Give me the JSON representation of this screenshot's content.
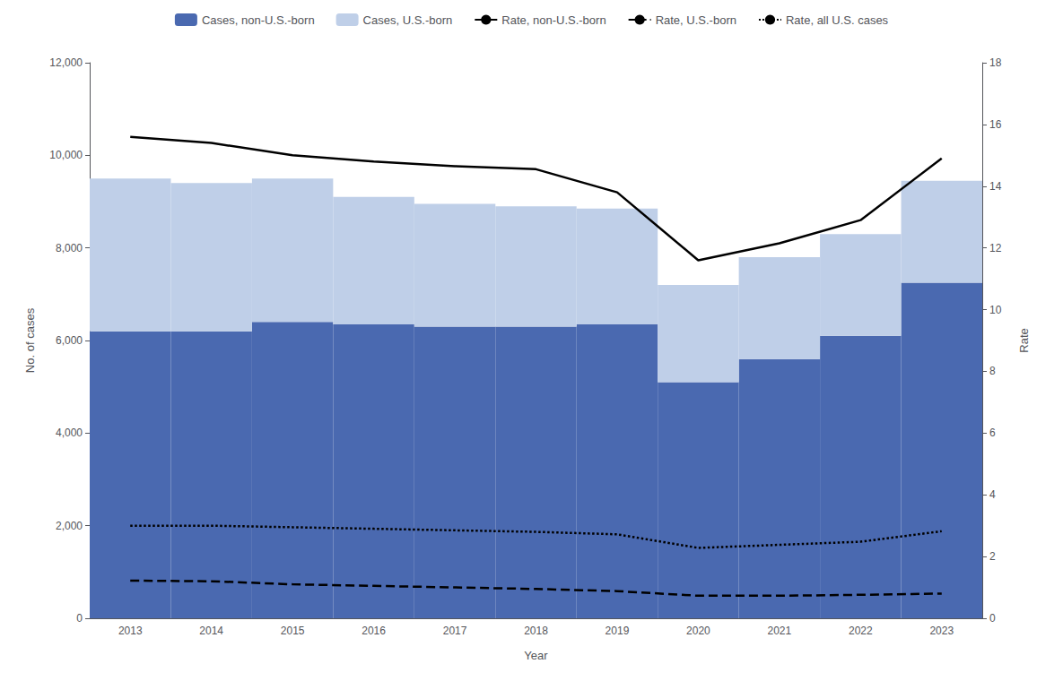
{
  "chart_data": {
    "type": "bar",
    "stacked": true,
    "grid": false,
    "legend": "upper center",
    "xlabel": "Year",
    "ylabel": "No. of cases",
    "y2label": "Rate",
    "categories": [
      "2013",
      "2014",
      "2015",
      "2016",
      "2017",
      "2018",
      "2019",
      "2020",
      "2021",
      "2022",
      "2023"
    ],
    "ylim": [
      0,
      12000
    ],
    "yticks": [
      0,
      {
        "value": 2000,
        "label": "2,000"
      },
      {
        "value": 4000,
        "label": "4,000"
      },
      {
        "value": 6000,
        "label": "6,000"
      },
      {
        "value": 8000,
        "label": "8,000"
      },
      {
        "value": 10000,
        "label": "10,000"
      },
      {
        "value": 12000,
        "label": "12,000"
      }
    ],
    "y2lim": [
      0,
      18
    ],
    "y2ticks": [
      0,
      2,
      4,
      6,
      8,
      10,
      12,
      14,
      16,
      18
    ],
    "series": [
      {
        "name": "Cases, non-U.S.-born",
        "type": "bar",
        "color": "#4a69b0",
        "values": [
          6200,
          6200,
          6400,
          6350,
          6300,
          6300,
          6350,
          5100,
          5600,
          6100,
          7250
        ]
      },
      {
        "name": "Cases, U.S.-born",
        "type": "bar",
        "color": "#bfcfe8",
        "values": [
          3300,
          3200,
          3100,
          2750,
          2650,
          2600,
          2500,
          2100,
          2200,
          2200,
          2200
        ]
      },
      {
        "name": "Rate, non-U.S.-born",
        "type": "line",
        "axis": "y2",
        "color": "#000000",
        "line_style": "solid",
        "values": [
          15.6,
          15.4,
          15.0,
          14.8,
          14.65,
          14.55,
          13.8,
          11.6,
          12.15,
          12.9,
          14.9
        ]
      },
      {
        "name": "Rate, U.S.-born",
        "type": "line",
        "axis": "y2",
        "color": "#000000",
        "line_style": "dashed",
        "values": [
          1.22,
          1.2,
          1.1,
          1.05,
          1.0,
          0.95,
          0.88,
          0.73,
          0.73,
          0.76,
          0.8
        ]
      },
      {
        "name": "Rate, all U.S. cases",
        "type": "line",
        "axis": "y2",
        "color": "#000000",
        "line_style": "dotted",
        "values": [
          3.0,
          3.0,
          2.95,
          2.9,
          2.85,
          2.8,
          2.72,
          2.28,
          2.38,
          2.48,
          2.82
        ]
      }
    ]
  }
}
